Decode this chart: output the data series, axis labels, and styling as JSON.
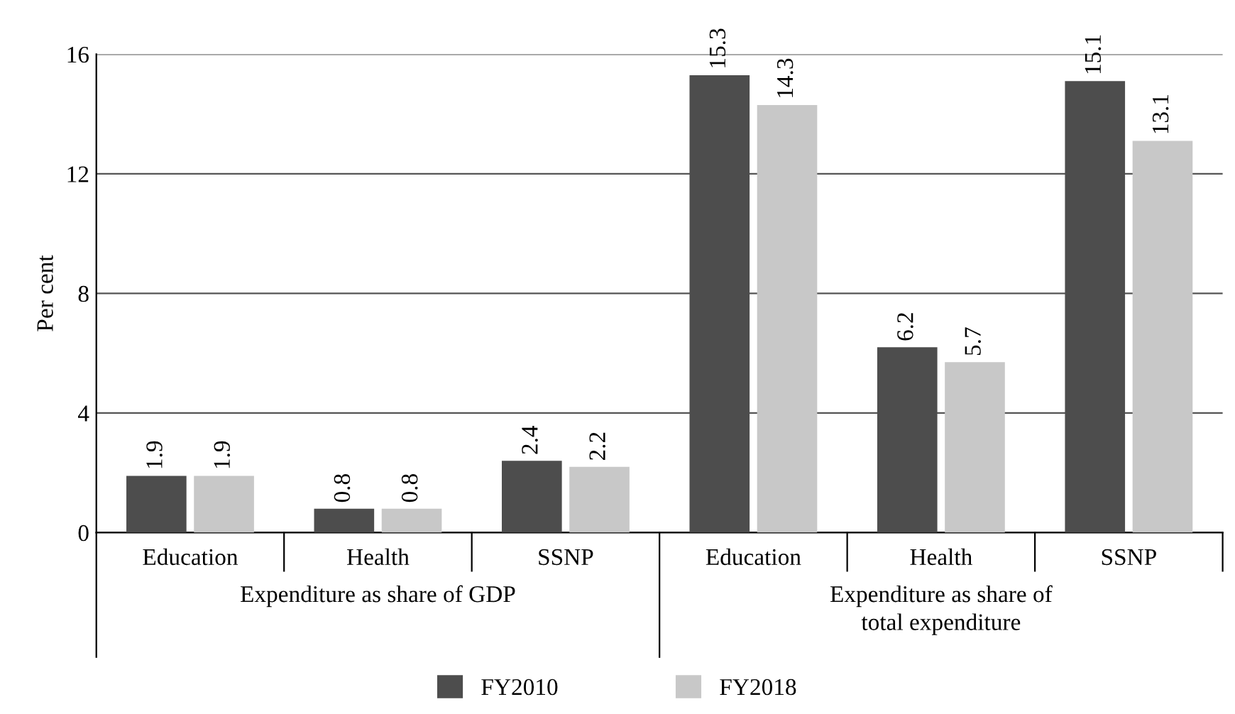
{
  "chart_data": {
    "type": "bar",
    "ylabel": "Per cent",
    "categories": [
      "Education",
      "Health",
      "SSNP",
      "Education",
      "Health",
      "SSNP"
    ],
    "series": [
      {
        "name": "FY2010",
        "color": "#4d4d4d",
        "values": [
          1.9,
          0.8,
          2.4,
          15.3,
          6.2,
          15.1
        ]
      },
      {
        "name": "FY2018",
        "color": "#c8c8c8",
        "values": [
          1.9,
          0.8,
          2.2,
          14.3,
          5.7,
          13.1
        ]
      }
    ],
    "annotations": [
      "Expenditure as share of GDP",
      "Expenditure as share of\ntotal expenditure"
    ],
    "ylim": [
      0,
      16
    ],
    "yticks": [
      0,
      4,
      8,
      12,
      16
    ],
    "grid": "y",
    "legend": "bottom",
    "data_labels": true
  }
}
